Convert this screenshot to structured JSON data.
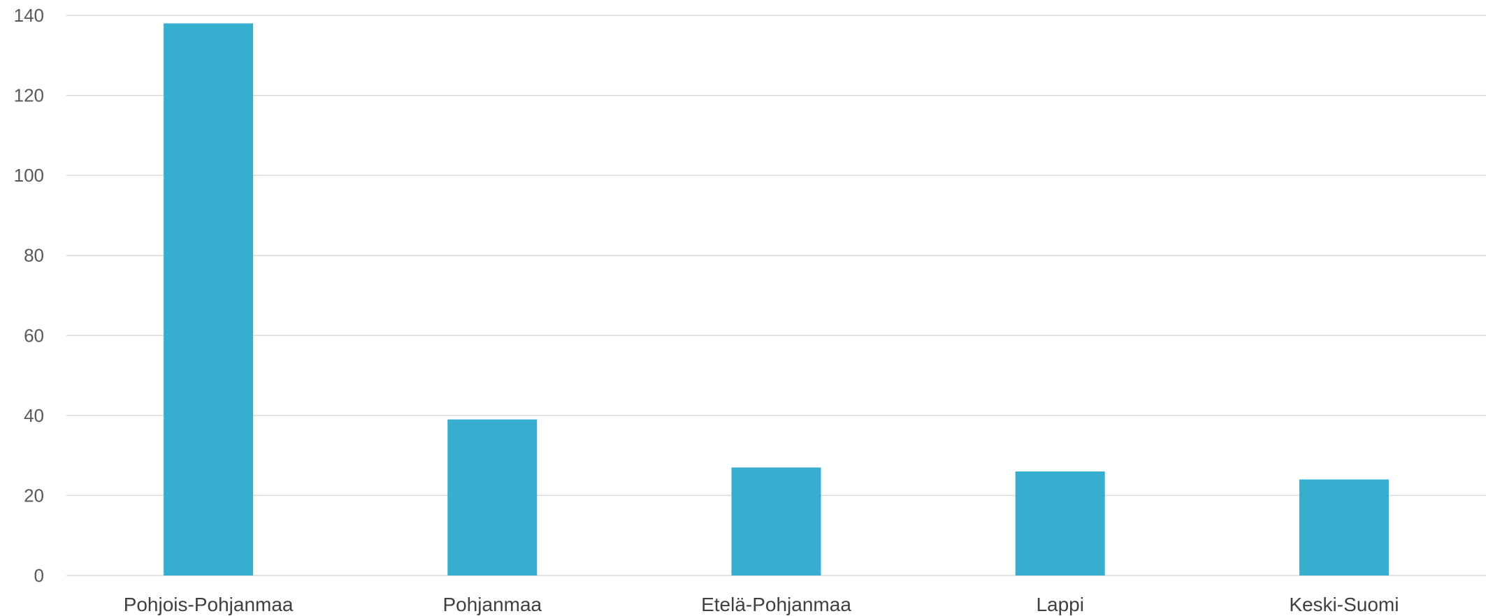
{
  "chart_data": {
    "type": "bar",
    "categories": [
      "Pohjois-Pohjanmaa",
      "Pohjanmaa",
      "Etelä-Pohjanmaa",
      "Lappi",
      "Keski-Suomi"
    ],
    "values": [
      138,
      39,
      27,
      26,
      24
    ],
    "title": "",
    "xlabel": "",
    "ylabel": "",
    "ylim": [
      0,
      140
    ],
    "yticks": [
      0,
      20,
      40,
      60,
      80,
      100,
      120,
      140
    ],
    "grid": true,
    "legend": "none",
    "bar_color": "#36aecf"
  }
}
